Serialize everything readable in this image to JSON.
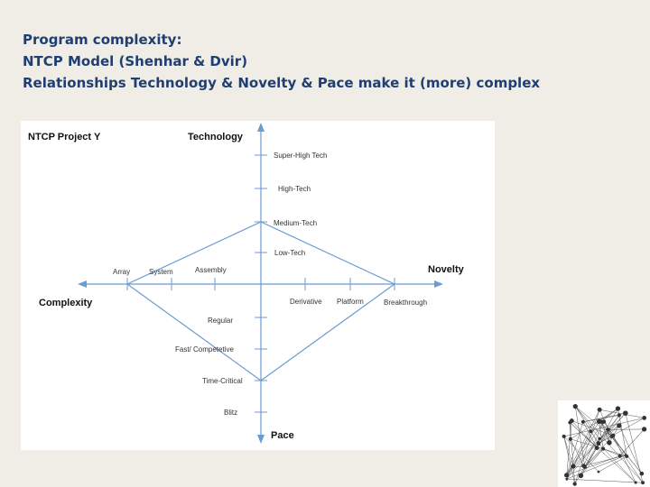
{
  "header": {
    "lines": [
      "Program complexity:",
      "NTCP Model (Shenhar & Dvir)",
      "Relationships Technology & Novelty & Pace  make it (more) complex"
    ]
  },
  "diagram": {
    "project": "NTCP Project Y",
    "technology": {
      "label": "Technology",
      "levels": [
        "Super-High Tech",
        "High-Tech",
        "Medium-Tech",
        "Low-Tech"
      ]
    },
    "novelty": {
      "label": "Novelty",
      "levels": [
        "Derivative",
        "Platform",
        "Breakthrough"
      ]
    },
    "complexity": {
      "label": "Complexity",
      "levels": [
        "Array",
        "System",
        "Assembly"
      ]
    },
    "pace": {
      "label": "Pace",
      "levels": [
        "Regular",
        "Fast/ Competetive",
        "Time-Critical",
        "Blitz"
      ]
    }
  }
}
